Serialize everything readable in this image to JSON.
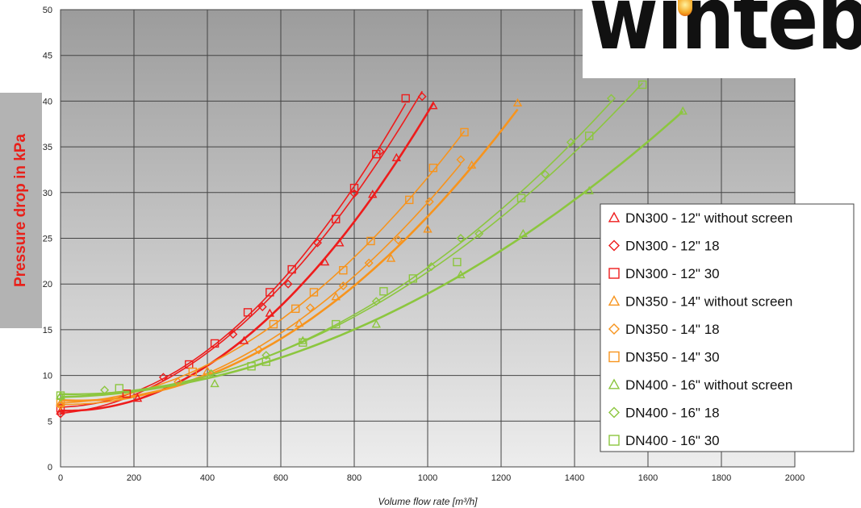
{
  "logo": {
    "text": "winteb"
  },
  "chart_data": {
    "type": "scatter",
    "title": "",
    "xlabel": "Volume flow rate [m³/h]",
    "ylabel": "Pressure drop in kPa",
    "xlim": [
      0,
      2000
    ],
    "ylim": [
      0,
      50
    ],
    "xticks": [
      0,
      200,
      400,
      600,
      800,
      1000,
      1200,
      1400,
      1600,
      1800,
      2000
    ],
    "yticks": [
      0,
      5,
      10,
      15,
      20,
      25,
      30,
      35,
      40,
      45,
      50
    ],
    "grid": true,
    "legend_position": "right",
    "series": [
      {
        "name": "DN300 - 12\" without screen",
        "color": "#ee1c1c",
        "marker": "triangle",
        "x": [
          0,
          210,
          500,
          570,
          720,
          760,
          850,
          915,
          1015
        ],
        "y": [
          6.1,
          7.5,
          13.8,
          16.8,
          22.4,
          24.5,
          29.8,
          33.8,
          39.5
        ]
      },
      {
        "name": "DN300 - 12\" 18",
        "color": "#ee1c1c",
        "marker": "diamond",
        "x": [
          0,
          280,
          470,
          550,
          620,
          700,
          800,
          870,
          985
        ],
        "y": [
          5.8,
          9.8,
          14.5,
          17.5,
          20.0,
          24.5,
          29.9,
          34.5,
          40.5
        ]
      },
      {
        "name": "DN300 - 12\" 30",
        "color": "#ee1c1c",
        "marker": "square",
        "x": [
          0,
          180,
          350,
          420,
          510,
          570,
          630,
          750,
          800,
          860,
          940
        ],
        "y": [
          6.4,
          8.0,
          11.2,
          13.5,
          16.9,
          19.1,
          21.6,
          27.1,
          30.5,
          34.2,
          40.3
        ]
      },
      {
        "name": "DN350 - 14\" without screen",
        "color": "#f7941d",
        "marker": "triangle",
        "x": [
          0,
          400,
          650,
          750,
          900,
          1000,
          1120,
          1245
        ],
        "y": [
          7.0,
          10.5,
          15.7,
          18.6,
          22.8,
          26.0,
          33.0,
          39.8
        ]
      },
      {
        "name": "DN350 - 14\" 18",
        "color": "#f7941d",
        "marker": "diamond",
        "x": [
          0,
          320,
          540,
          680,
          770,
          840,
          920,
          1005,
          1090
        ],
        "y": [
          6.7,
          9.3,
          12.8,
          17.4,
          19.8,
          22.3,
          24.8,
          29.0,
          33.6
        ]
      },
      {
        "name": "DN350 - 14\" 30",
        "color": "#f7941d",
        "marker": "square",
        "x": [
          0,
          360,
          580,
          640,
          690,
          770,
          845,
          950,
          1015,
          1100
        ],
        "y": [
          7.0,
          10.4,
          15.6,
          17.3,
          19.1,
          21.5,
          24.7,
          29.2,
          32.7,
          36.6
        ]
      },
      {
        "name": "DN400 - 16\" without screen",
        "color": "#8cc63f",
        "marker": "triangle",
        "x": [
          0,
          420,
          660,
          860,
          1090,
          1260,
          1440,
          1695
        ],
        "y": [
          7.8,
          9.1,
          13.8,
          15.6,
          21.0,
          25.5,
          30.2,
          38.9
        ]
      },
      {
        "name": "DN400 - 16\" 18",
        "color": "#8cc63f",
        "marker": "diamond",
        "x": [
          0,
          120,
          410,
          560,
          860,
          1010,
          1090,
          1140,
          1320,
          1390,
          1500
        ],
        "y": [
          7.6,
          8.4,
          10.2,
          12.2,
          18.1,
          21.9,
          25.0,
          25.5,
          32.0,
          35.5,
          40.3
        ]
      },
      {
        "name": "DN400 - 16\" 30",
        "color": "#8cc63f",
        "marker": "square",
        "x": [
          0,
          160,
          520,
          560,
          660,
          750,
          880,
          960,
          1080,
          1255,
          1440,
          1585
        ],
        "y": [
          7.8,
          8.6,
          11.0,
          11.5,
          13.6,
          15.6,
          19.2,
          20.6,
          22.4,
          29.4,
          36.2,
          41.8
        ]
      }
    ]
  }
}
